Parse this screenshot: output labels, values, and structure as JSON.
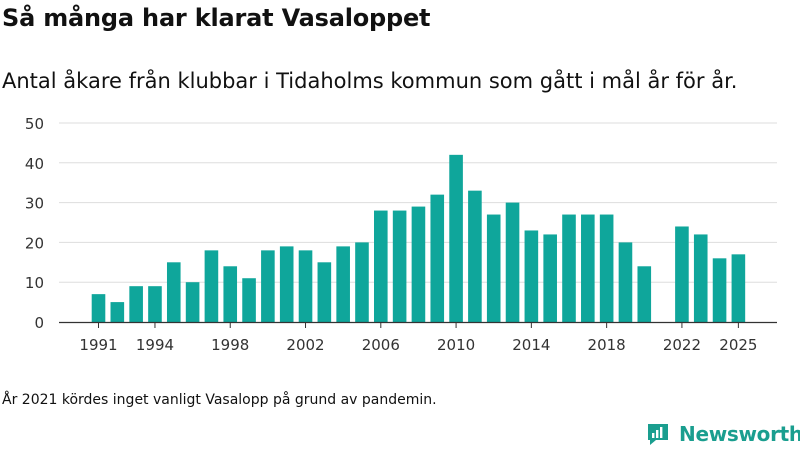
{
  "header": {
    "title": "Så många har klarat Vasaloppet",
    "subtitle": "Antal åkare från klubbar i Tidaholms kommun som gått i mål år för år."
  },
  "footer": {
    "note": "År 2021 kördes inget vanligt Vasalopp på grund av pandemin.",
    "brand": "Newsworthy"
  },
  "colors": {
    "bar": "#0fa69b",
    "grid": "#dddddd",
    "axis": "#333333",
    "brand": "#1a9e8f"
  },
  "chart_data": {
    "type": "bar",
    "title": "Så många har klarat Vasaloppet",
    "subtitle": "Antal åkare från klubbar i Tidaholms kommun som gått i mål år för år.",
    "xlabel": "",
    "ylabel": "",
    "ylim": [
      0,
      50
    ],
    "yticks": [
      0,
      10,
      20,
      30,
      40,
      50
    ],
    "xticks": [
      1991,
      1994,
      1998,
      2002,
      2006,
      2010,
      2014,
      2018,
      2022,
      2025
    ],
    "grid": true,
    "categories": [
      1991,
      1992,
      1993,
      1994,
      1995,
      1996,
      1997,
      1998,
      1999,
      2000,
      2001,
      2002,
      2003,
      2004,
      2005,
      2006,
      2007,
      2008,
      2009,
      2010,
      2011,
      2012,
      2013,
      2014,
      2015,
      2016,
      2017,
      2018,
      2019,
      2020,
      2021,
      2022,
      2023,
      2024,
      2025
    ],
    "values": [
      7,
      5,
      9,
      9,
      15,
      10,
      18,
      14,
      11,
      18,
      19,
      18,
      15,
      19,
      20,
      28,
      28,
      29,
      32,
      42,
      33,
      27,
      30,
      23,
      22,
      27,
      27,
      27,
      20,
      14,
      null,
      24,
      22,
      16,
      17
    ]
  }
}
